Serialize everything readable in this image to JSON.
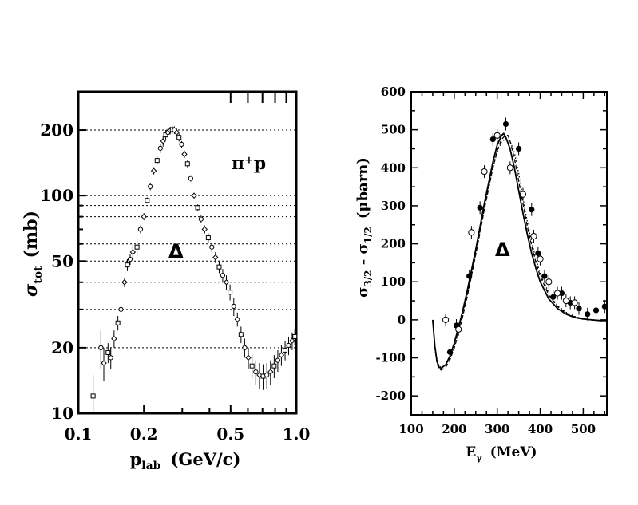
{
  "chart_data": [
    {
      "type": "scatter",
      "xlabel_main": "p",
      "xlabel_sub": "lab",
      "xlabel_unit": "(GeV/c)",
      "ylabel_main": "σ",
      "ylabel_sub": "tot",
      "ylabel_unit": "(mb)",
      "x_scale": "log",
      "y_scale": "log",
      "xlim": [
        0.1,
        1.0
      ],
      "ylim": [
        10,
        300
      ],
      "x_ticks": [
        {
          "v": 0.1,
          "label": "0.1"
        },
        {
          "v": 0.2,
          "label": "0.2"
        },
        {
          "v": 0.5,
          "label": "0.5"
        },
        {
          "v": 1.0,
          "label": "1.0"
        }
      ],
      "y_ticks": [
        {
          "v": 10,
          "label": "10"
        },
        {
          "v": 20,
          "label": "20"
        },
        {
          "v": 50,
          "label": "50"
        },
        {
          "v": 100,
          "label": "100"
        },
        {
          "v": 200,
          "label": "200"
        }
      ],
      "dotted_reference_lines_y": [
        20,
        30,
        40,
        50,
        60,
        80,
        90,
        100,
        200
      ],
      "annotations": {
        "reaction": "π⁺p",
        "resonance": "Δ"
      },
      "series": [
        {
          "marker": "mixed",
          "points": [
            [
              0.117,
              12,
              3
            ],
            [
              0.127,
              20,
              4
            ],
            [
              0.131,
              17,
              3
            ],
            [
              0.137,
              19,
              2
            ],
            [
              0.141,
              18,
              2
            ],
            [
              0.146,
              22,
              2
            ],
            [
              0.152,
              26,
              2
            ],
            [
              0.157,
              30,
              2
            ],
            [
              0.163,
              40,
              2
            ],
            [
              0.168,
              48,
              3
            ],
            [
              0.173,
              51,
              3
            ],
            [
              0.178,
              55,
              4
            ],
            [
              0.186,
              58,
              6
            ],
            [
              0.193,
              70,
              3
            ],
            [
              0.2,
              80,
              3
            ],
            [
              0.207,
              95,
              3
            ],
            [
              0.214,
              110,
              4
            ],
            [
              0.222,
              130,
              5
            ],
            [
              0.23,
              145,
              6
            ],
            [
              0.238,
              165,
              8
            ],
            [
              0.245,
              178,
              10
            ],
            [
              0.252,
              190,
              10
            ],
            [
              0.258,
              195,
              8
            ],
            [
              0.264,
              199,
              8
            ],
            [
              0.27,
              201,
              8
            ],
            [
              0.276,
              200,
              8
            ],
            [
              0.283,
              195,
              8
            ],
            [
              0.29,
              185,
              8
            ],
            [
              0.298,
              172,
              6
            ],
            [
              0.307,
              155,
              6
            ],
            [
              0.317,
              140,
              5
            ],
            [
              0.328,
              120,
              4
            ],
            [
              0.34,
              100,
              3
            ],
            [
              0.353,
              88,
              3
            ],
            [
              0.366,
              78,
              3
            ],
            [
              0.38,
              70,
              3
            ],
            [
              0.395,
              64,
              3
            ],
            [
              0.41,
              58,
              3
            ],
            [
              0.426,
              52,
              3
            ],
            [
              0.443,
              47,
              3
            ],
            [
              0.46,
              43,
              3
            ],
            [
              0.478,
              40,
              3
            ],
            [
              0.497,
              36,
              3
            ],
            [
              0.517,
              31,
              3
            ],
            [
              0.537,
              27,
              2
            ],
            [
              0.558,
              23,
              2
            ],
            [
              0.58,
              20,
              2
            ],
            [
              0.603,
              18,
              2
            ],
            [
              0.627,
              16.5,
              2
            ],
            [
              0.652,
              15.5,
              2
            ],
            [
              0.678,
              15,
              2
            ],
            [
              0.705,
              14.8,
              2
            ],
            [
              0.733,
              15,
              2
            ],
            [
              0.762,
              15.5,
              2
            ],
            [
              0.792,
              16.5,
              2
            ],
            [
              0.823,
              17.5,
              2
            ],
            [
              0.855,
              18.5,
              2
            ],
            [
              0.889,
              19.5,
              2
            ],
            [
              0.923,
              20.5,
              2
            ],
            [
              0.958,
              21.5,
              2
            ],
            [
              0.985,
              22.5,
              2
            ]
          ]
        }
      ]
    },
    {
      "type": "line",
      "xlabel_main": "E",
      "xlabel_sub": "γ",
      "xlabel_unit": "(MeV)",
      "ylabel_main": "σ",
      "ylabel_sub_a": "3/2",
      "ylabel_mid": " - σ",
      "ylabel_sub_b": "1/2",
      "ylabel_unit": "(μbarn)",
      "xlim": [
        100,
        555
      ],
      "ylim": [
        -250,
        600
      ],
      "x_ticks": [
        100,
        200,
        300,
        400,
        500
      ],
      "y_ticks": [
        -200,
        -100,
        0,
        100,
        200,
        300,
        400,
        500,
        600
      ],
      "annotation": "Δ",
      "series": [
        {
          "name": "",
          "line_style": "solid",
          "x": [
            150,
            155,
            160,
            165,
            170,
            180,
            190,
            200,
            210,
            220,
            230,
            240,
            250,
            260,
            270,
            280,
            290,
            300,
            310,
            315,
            320,
            330,
            340,
            350,
            360,
            370,
            380,
            390,
            400,
            420,
            440,
            460,
            480,
            500,
            520,
            540,
            555
          ],
          "values": [
            0,
            -70,
            -110,
            -125,
            -127,
            -118,
            -95,
            -62,
            -20,
            25,
            75,
            130,
            185,
            245,
            305,
            360,
            415,
            460,
            485,
            490,
            480,
            450,
            400,
            340,
            280,
            225,
            175,
            135,
            100,
            55,
            30,
            15,
            6,
            2,
            0,
            -2,
            -2
          ]
        },
        {
          "name": "",
          "line_style": "dashed",
          "x": [
            150,
            155,
            160,
            165,
            170,
            180,
            190,
            200,
            210,
            220,
            230,
            240,
            250,
            260,
            270,
            280,
            290,
            300,
            310,
            320,
            325,
            330,
            340,
            350,
            360,
            370,
            380,
            390,
            400,
            420,
            440,
            460,
            480,
            500,
            520,
            540,
            555
          ],
          "values": [
            0,
            -72,
            -115,
            -130,
            -132,
            -125,
            -105,
            -75,
            -35,
            10,
            60,
            115,
            172,
            230,
            290,
            345,
            400,
            445,
            475,
            486,
            485,
            470,
            425,
            365,
            305,
            245,
            195,
            150,
            115,
            65,
            35,
            18,
            8,
            3,
            0,
            -2,
            -2
          ]
        },
        {
          "name": "",
          "line_style": "dotted",
          "x": [
            150,
            155,
            160,
            165,
            170,
            180,
            190,
            200,
            210,
            220,
            230,
            240,
            250,
            260,
            270,
            280,
            290,
            300,
            310,
            320,
            330,
            340,
            350,
            360,
            370,
            380,
            390,
            400,
            420,
            440,
            460,
            480,
            500,
            520,
            540,
            555
          ],
          "values": [
            0,
            -68,
            -108,
            -122,
            -125,
            -119,
            -100,
            -70,
            -30,
            15,
            65,
            118,
            175,
            235,
            292,
            348,
            400,
            442,
            468,
            477,
            470,
            440,
            385,
            320,
            258,
            205,
            160,
            122,
            70,
            38,
            20,
            9,
            3,
            0,
            -2,
            -2
          ]
        }
      ],
      "markers": {
        "filled_circles": [
          [
            190,
            -85
          ],
          [
            205,
            -15
          ],
          [
            235,
            115
          ],
          [
            260,
            295
          ],
          [
            290,
            475
          ],
          [
            320,
            515
          ],
          [
            350,
            450
          ],
          [
            380,
            290
          ],
          [
            395,
            175
          ],
          [
            410,
            115
          ],
          [
            430,
            60
          ],
          [
            450,
            70
          ],
          [
            470,
            45
          ],
          [
            490,
            30
          ],
          [
            510,
            15
          ],
          [
            530,
            25
          ],
          [
            550,
            35
          ]
        ],
        "open_circles": [
          [
            180,
            0
          ],
          [
            210,
            -25
          ],
          [
            240,
            230
          ],
          [
            270,
            390
          ],
          [
            300,
            485
          ],
          [
            330,
            400
          ],
          [
            360,
            330
          ],
          [
            385,
            220
          ],
          [
            400,
            160
          ],
          [
            420,
            100
          ],
          [
            440,
            70
          ],
          [
            460,
            50
          ],
          [
            480,
            45
          ]
        ]
      }
    }
  ]
}
